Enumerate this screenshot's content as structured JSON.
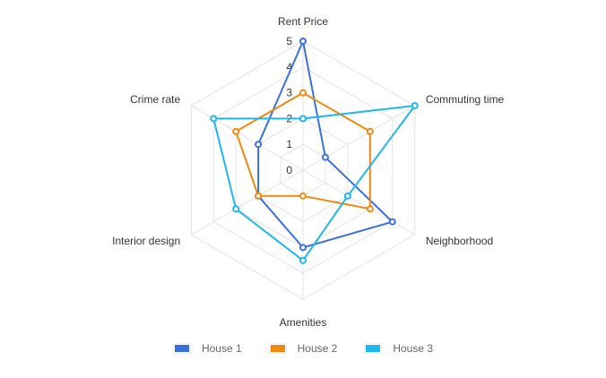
{
  "chart_data": {
    "type": "radar",
    "title": "",
    "indicators": [
      "Rent Price",
      "Commuting time",
      "Neighborhood",
      "Amenities",
      "Interior design",
      "Crime rate"
    ],
    "range": [
      0,
      5
    ],
    "ticks": [
      "0",
      "1",
      "2",
      "3",
      "4",
      "5"
    ],
    "series": [
      {
        "name": "House 1",
        "color": "#3b6fe0",
        "values": [
          5,
          1,
          4,
          3,
          2,
          2
        ]
      },
      {
        "name": "House 2",
        "color": "#f0890f",
        "values": [
          3,
          3,
          3,
          1,
          2,
          3
        ]
      },
      {
        "name": "House 3",
        "color": "#1fb6ee",
        "values": [
          2,
          5,
          2,
          3.5,
          3,
          4
        ]
      }
    ],
    "legend_position": "bottom",
    "grid": true
  },
  "legend": {
    "items": [
      {
        "label": "House 1",
        "color": "#3b6fe0"
      },
      {
        "label": "House 2",
        "color": "#f0890f"
      },
      {
        "label": "House 3",
        "color": "#1fb6ee"
      }
    ]
  }
}
